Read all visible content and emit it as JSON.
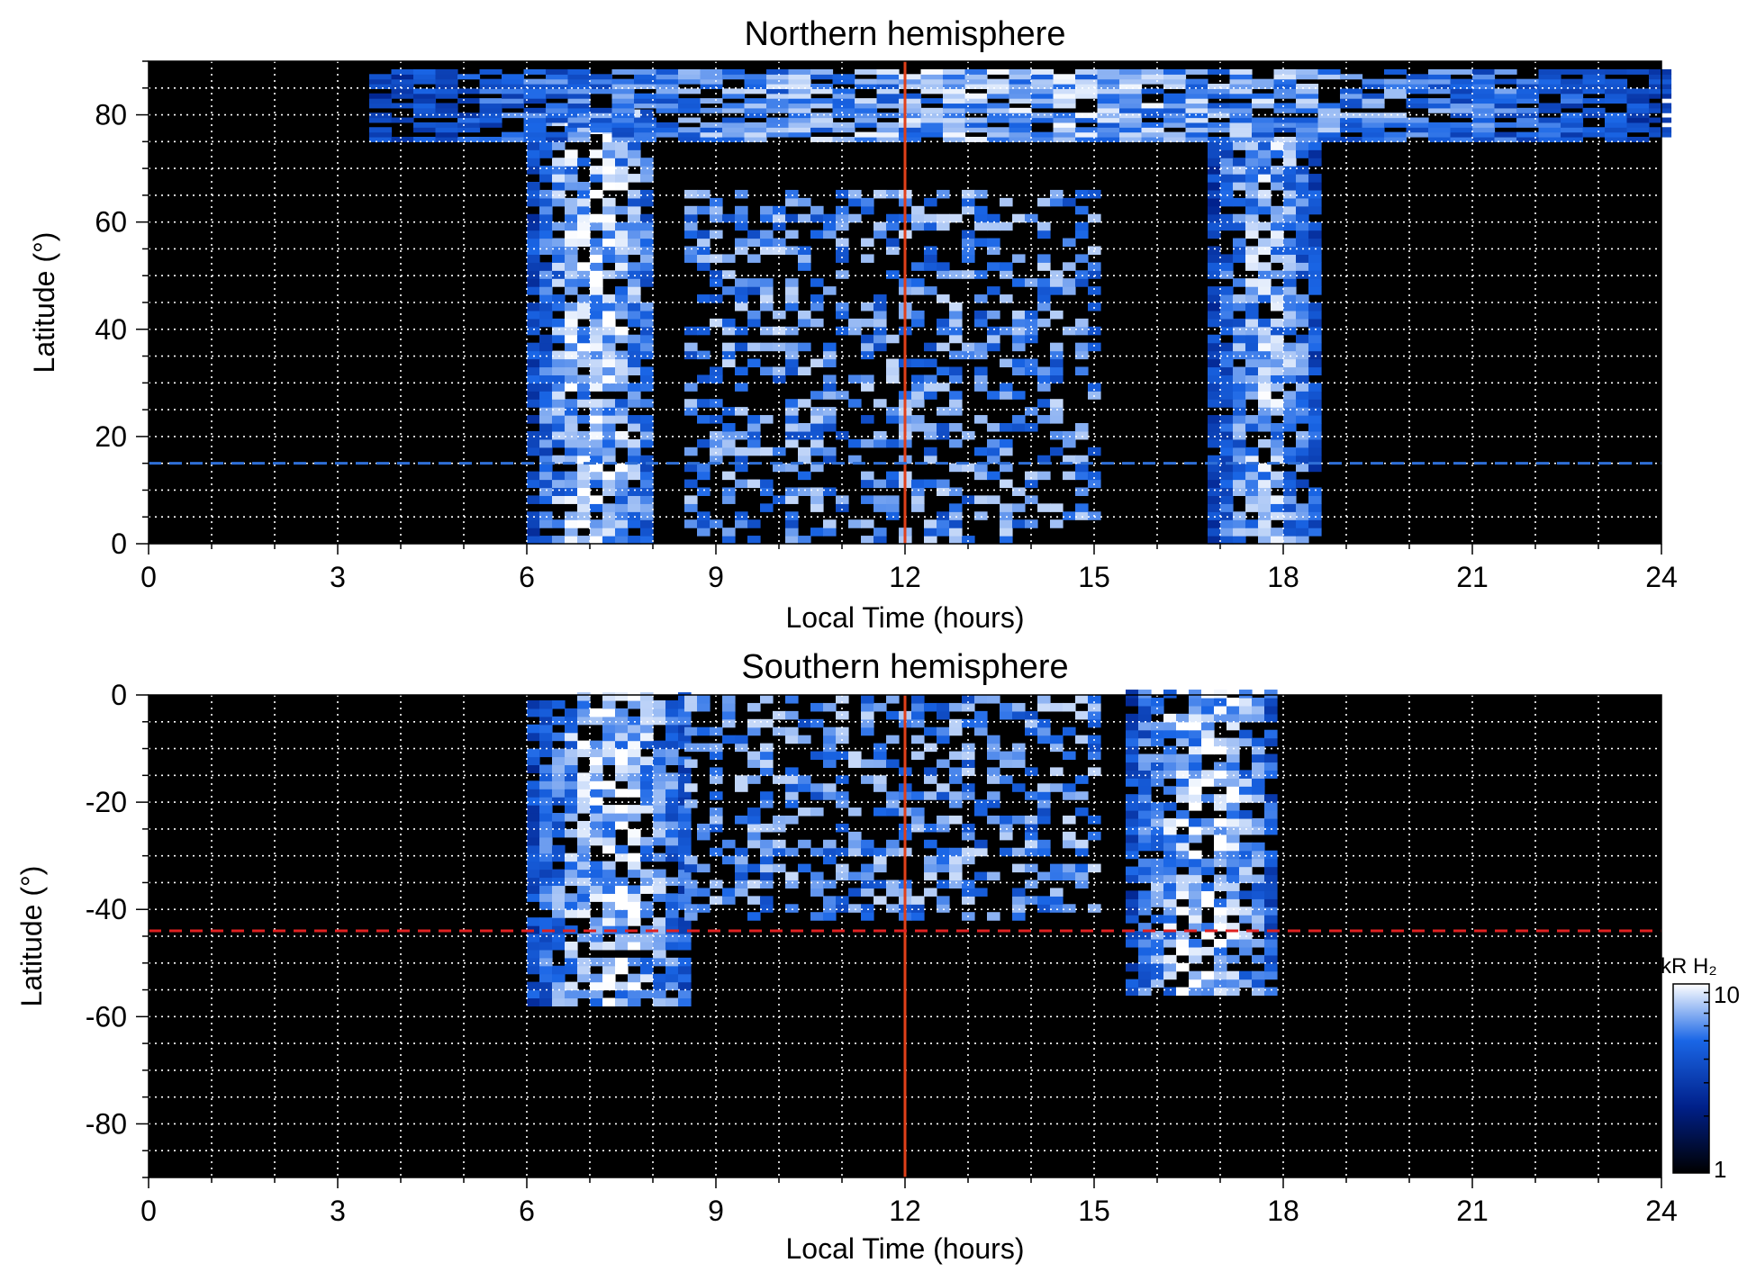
{
  "chart_data": [
    {
      "type": "heatmap",
      "title": "Northern hemisphere",
      "xlabel": "Local Time (hours)",
      "ylabel": "Latitude (°)",
      "xlim": [
        0,
        24
      ],
      "ylim": [
        0,
        90
      ],
      "xticks": [
        0,
        3,
        6,
        9,
        12,
        15,
        18,
        21,
        24
      ],
      "yticks": [
        0,
        20,
        40,
        60,
        80
      ],
      "grid": true,
      "reference_lines": [
        {
          "orientation": "vertical",
          "x": 12,
          "color": "#e0401a",
          "style": "solid"
        },
        {
          "orientation": "horizontal",
          "y": 15,
          "color": "#2f6fd6",
          "style": "dashed"
        }
      ],
      "emission_regions": [
        {
          "feature": "dawn auroral band",
          "lt_range": [
            6,
            8
          ],
          "lat_range": [
            0,
            80
          ],
          "intensity_kR": 8
        },
        {
          "feature": "dusk auroral band",
          "lt_range": [
            16.8,
            18.5
          ],
          "lat_range": [
            0,
            75
          ],
          "intensity_kR": 7
        },
        {
          "feature": "noon patchy emission",
          "lt_range": [
            8.5,
            15
          ],
          "lat_range": [
            0,
            65
          ],
          "intensity_kR": 6
        },
        {
          "feature": "polar arc",
          "lt_range": [
            3.5,
            24
          ],
          "lat_range": [
            75,
            88
          ],
          "intensity_kR": 7
        }
      ]
    },
    {
      "type": "heatmap",
      "title": "Southern hemisphere",
      "xlabel": "Local Time (hours)",
      "ylabel": "Latitude (°)",
      "xlim": [
        0,
        24
      ],
      "ylim": [
        -90,
        0
      ],
      "xticks": [
        0,
        3,
        6,
        9,
        12,
        15,
        18,
        21,
        24
      ],
      "yticks": [
        0,
        -20,
        -40,
        -60,
        -80
      ],
      "grid": true,
      "reference_lines": [
        {
          "orientation": "vertical",
          "x": 12,
          "color": "#e0401a",
          "style": "solid"
        },
        {
          "orientation": "horizontal",
          "y": -44,
          "color": "#e02020",
          "style": "dashed"
        }
      ],
      "emission_regions": [
        {
          "feature": "dawn auroral band",
          "lt_range": [
            6,
            8.5
          ],
          "lat_range": [
            -58,
            0
          ],
          "intensity_kR": 8
        },
        {
          "feature": "dusk auroral band",
          "lt_range": [
            15.5,
            17.8
          ],
          "lat_range": [
            -56,
            0
          ],
          "intensity_kR": 8
        },
        {
          "feature": "noon patchy emission",
          "lt_range": [
            8.5,
            15
          ],
          "lat_range": [
            -42,
            0
          ],
          "intensity_kR": 6
        }
      ],
      "colorbar": {
        "label": "kR H₂",
        "scale": "log",
        "range": [
          1,
          10
        ],
        "tick_labels": [
          "1",
          "10"
        ],
        "colors": [
          "#000000",
          "#00208a",
          "#1a66e6",
          "#ffffff"
        ]
      }
    }
  ]
}
